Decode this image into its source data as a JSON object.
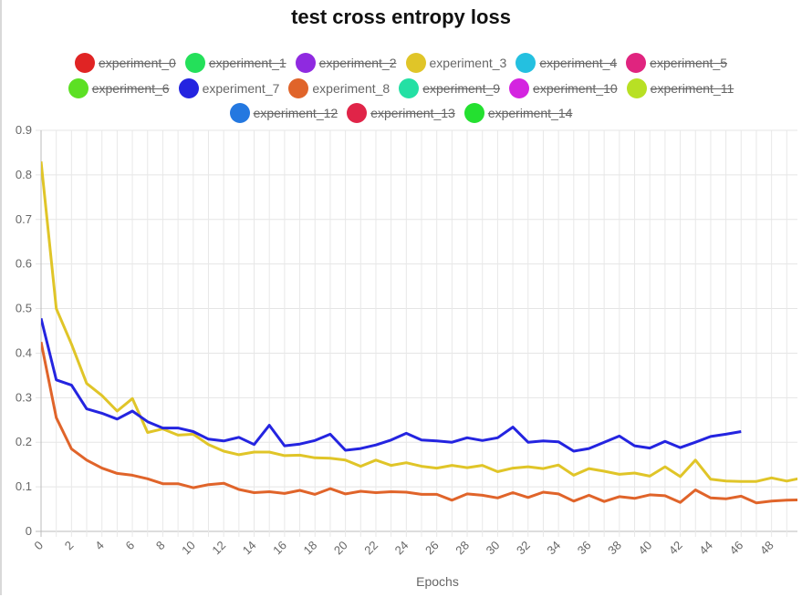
{
  "chart_data": {
    "type": "line",
    "title": "test cross entropy loss",
    "xlabel": "Epochs",
    "ylabel": "",
    "xlim": [
      0,
      49.7
    ],
    "ylim": [
      0,
      0.9
    ],
    "y_ticks": [
      "0",
      "0.1",
      "0.2",
      "0.3",
      "0.4",
      "0.5",
      "0.6",
      "0.7",
      "0.8",
      "0.9"
    ],
    "x_ticks": [
      "0",
      "2",
      "4",
      "6",
      "8",
      "10",
      "12",
      "14",
      "16",
      "18",
      "20",
      "22",
      "24",
      "26",
      "28",
      "30",
      "32",
      "34",
      "36",
      "38",
      "40",
      "42",
      "44",
      "46",
      "48"
    ],
    "grid": true,
    "legend_position": "top-center",
    "legend": [
      {
        "name": "experiment_0",
        "color": "#e02424",
        "hidden": true
      },
      {
        "name": "experiment_1",
        "color": "#24e05a",
        "hidden": true
      },
      {
        "name": "experiment_2",
        "color": "#8f2ae0",
        "hidden": true
      },
      {
        "name": "experiment_3",
        "color": "#e0c528",
        "hidden": false
      },
      {
        "name": "experiment_4",
        "color": "#24c0e0",
        "hidden": true
      },
      {
        "name": "experiment_5",
        "color": "#e0247f",
        "hidden": true
      },
      {
        "name": "experiment_6",
        "color": "#5ce024",
        "hidden": true
      },
      {
        "name": "experiment_7",
        "color": "#2424e0",
        "hidden": false
      },
      {
        "name": "experiment_8",
        "color": "#e0642a",
        "hidden": false
      },
      {
        "name": "experiment_9",
        "color": "#24e0a4",
        "hidden": true
      },
      {
        "name": "experiment_10",
        "color": "#d424e0",
        "hidden": true
      },
      {
        "name": "experiment_11",
        "color": "#b8e024",
        "hidden": true
      },
      {
        "name": "experiment_12",
        "color": "#2478e0",
        "hidden": true
      },
      {
        "name": "experiment_13",
        "color": "#e02448",
        "hidden": true
      },
      {
        "name": "experiment_14",
        "color": "#24e030",
        "hidden": true
      }
    ],
    "series": [
      {
        "name": "experiment_3",
        "color": "#e0c528",
        "x": [
          0,
          1,
          2,
          3,
          4,
          5,
          6,
          7,
          8,
          9,
          10,
          11,
          12,
          13,
          14,
          15,
          16,
          17,
          18,
          19,
          20,
          21,
          22,
          23,
          24,
          25,
          26,
          27,
          28,
          29,
          30,
          31,
          32,
          33,
          34,
          35,
          36,
          37,
          38,
          39,
          40,
          41,
          42,
          43,
          44,
          45,
          46,
          47,
          48,
          49,
          50
        ],
        "values": [
          0.83,
          0.5,
          0.42,
          0.332,
          0.305,
          0.27,
          0.298,
          0.222,
          0.23,
          0.216,
          0.218,
          0.195,
          0.18,
          0.172,
          0.178,
          0.178,
          0.17,
          0.171,
          0.165,
          0.164,
          0.16,
          0.146,
          0.16,
          0.148,
          0.154,
          0.146,
          0.142,
          0.148,
          0.143,
          0.148,
          0.134,
          0.142,
          0.145,
          0.141,
          0.149,
          0.126,
          0.141,
          0.135,
          0.128,
          0.131,
          0.124,
          0.145,
          0.123,
          0.16,
          0.117,
          0.113,
          0.112,
          0.112,
          0.12,
          0.113,
          0.12
        ]
      },
      {
        "name": "experiment_7",
        "color": "#2424e0",
        "x": [
          0,
          1,
          2,
          3,
          4,
          5,
          6,
          7,
          8,
          9,
          10,
          11,
          12,
          13,
          14,
          15,
          16,
          17,
          18,
          19,
          20,
          21,
          22,
          23,
          24,
          25,
          26,
          27,
          28,
          29,
          30,
          31,
          32,
          33,
          34,
          35,
          36,
          37,
          38,
          39,
          40,
          41,
          42,
          43,
          44,
          45,
          46
        ],
        "values": [
          0.478,
          0.34,
          0.328,
          0.275,
          0.265,
          0.252,
          0.27,
          0.246,
          0.232,
          0.232,
          0.224,
          0.207,
          0.203,
          0.211,
          0.195,
          0.238,
          0.192,
          0.196,
          0.204,
          0.218,
          0.182,
          0.186,
          0.194,
          0.205,
          0.22,
          0.205,
          0.203,
          0.2,
          0.21,
          0.204,
          0.21,
          0.234,
          0.2,
          0.203,
          0.201,
          0.18,
          0.186,
          0.2,
          0.214,
          0.192,
          0.187,
          0.202,
          0.188,
          0.2,
          0.213,
          0.218,
          0.224
        ]
      },
      {
        "name": "experiment_8",
        "color": "#e0642a",
        "x": [
          0,
          1,
          2,
          3,
          4,
          5,
          6,
          7,
          8,
          9,
          10,
          11,
          12,
          13,
          14,
          15,
          16,
          17,
          18,
          19,
          20,
          21,
          22,
          23,
          24,
          25,
          26,
          27,
          28,
          29,
          30,
          31,
          32,
          33,
          34,
          35,
          36,
          37,
          38,
          39,
          40,
          41,
          42,
          43,
          44,
          45,
          46,
          47,
          48,
          49,
          50
        ],
        "values": [
          0.425,
          0.255,
          0.185,
          0.16,
          0.142,
          0.13,
          0.126,
          0.118,
          0.107,
          0.107,
          0.098,
          0.105,
          0.108,
          0.094,
          0.087,
          0.089,
          0.085,
          0.092,
          0.083,
          0.096,
          0.084,
          0.09,
          0.087,
          0.089,
          0.088,
          0.083,
          0.083,
          0.07,
          0.084,
          0.081,
          0.075,
          0.087,
          0.076,
          0.088,
          0.084,
          0.068,
          0.081,
          0.067,
          0.078,
          0.074,
          0.082,
          0.08,
          0.065,
          0.093,
          0.075,
          0.073,
          0.079,
          0.064,
          0.068,
          0.07,
          0.071
        ]
      }
    ]
  }
}
